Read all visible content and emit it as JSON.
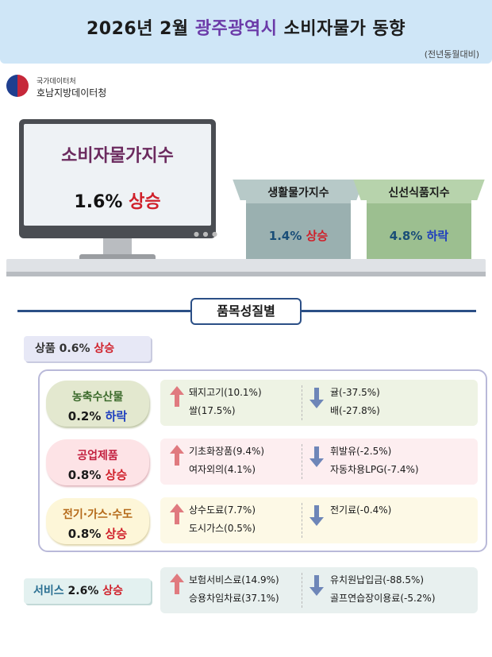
{
  "header": {
    "title_prefix": "2026년 2월 ",
    "title_region": "광주광역시",
    "title_suffix": " 소비자물가 동향",
    "note": "(전년동월대비)"
  },
  "org": {
    "line1": "국가데이터처",
    "line2": "호남지방데이터청"
  },
  "cpi": {
    "label": "소비자물가지수",
    "value": "1.6%",
    "direction": "상승"
  },
  "boxes": [
    {
      "label": "생활물가지수",
      "value": "1.4%",
      "direction": "상승"
    },
    {
      "label": "신선식품지수",
      "value": "4.8%",
      "direction": "하락"
    }
  ],
  "section_title": "품목성질별",
  "goods": {
    "label": "상품",
    "value": "0.6%",
    "direction": "상승"
  },
  "categories": [
    {
      "name": "농축수산물",
      "value": "0.2%",
      "direction": "하락",
      "up_items": [
        "돼지고기(10.1%)",
        "쌀(17.5%)"
      ],
      "down_items": [
        "귤(-37.5%)",
        "배(-27.8%)"
      ]
    },
    {
      "name": "공업제품",
      "value": "0.8%",
      "direction": "상승",
      "up_items": [
        "기초화장품(9.4%)",
        "여자외의(4.1%)"
      ],
      "down_items": [
        "휘발유(-2.5%)",
        "자동차용LPG(-7.4%)"
      ]
    },
    {
      "name": "전기·가스·수도",
      "value": "0.8%",
      "direction": "상승",
      "up_items": [
        "상수도료(7.7%)",
        "도시가스(0.5%)"
      ],
      "down_items": [
        "전기료(-0.4%)"
      ]
    }
  ],
  "services": {
    "label": "서비스",
    "value": "2.6%",
    "direction": "상승",
    "up_items": [
      "보험서비스료(14.9%)",
      "승용차임차료(37.1%)"
    ],
    "down_items": [
      "유치원납입금(-88.5%)",
      "골프연습장이용료(-5.2%)"
    ]
  },
  "colors": {
    "header_bg": "#cfe6f7",
    "region_purple": "#6b3aa8",
    "rise_red": "#d0202a",
    "fall_blue": "#1f3fbf",
    "divider_navy": "#2b4f86"
  },
  "icons": {
    "logo": "taegeuk-logo-icon",
    "rise": "arrow-up-icon",
    "fall": "arrow-down-icon"
  }
}
